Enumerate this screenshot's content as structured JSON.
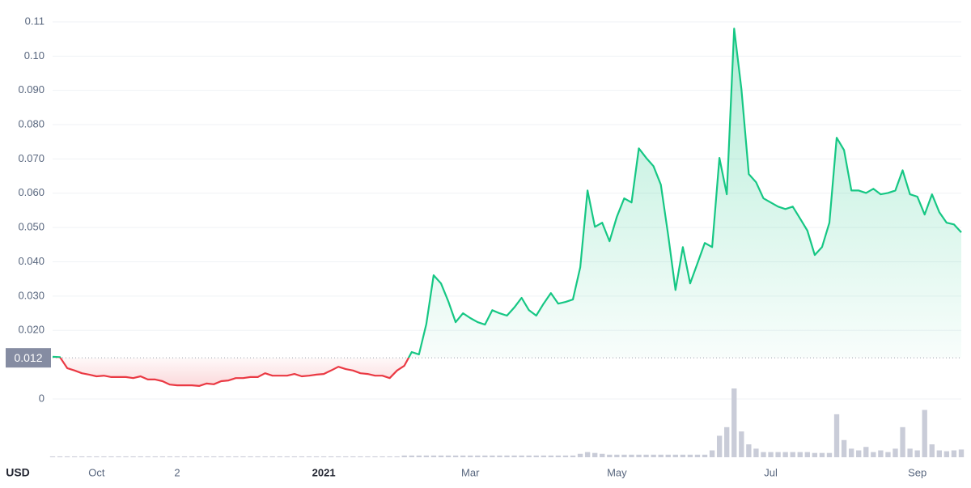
{
  "chart_data": {
    "type": "line",
    "currency": "USD",
    "reference_price": 0.012,
    "categories": [
      null,
      null,
      null,
      null,
      null,
      null,
      "Oct",
      null,
      null,
      null,
      null,
      null,
      null,
      null,
      null,
      null,
      null,
      "2",
      null,
      null,
      null,
      null,
      null,
      null,
      null,
      null,
      null,
      null,
      null,
      null,
      null,
      null,
      null,
      null,
      null,
      null,
      null,
      "2021",
      null,
      null,
      null,
      null,
      null,
      null,
      null,
      null,
      null,
      null,
      null,
      null,
      null,
      null,
      null,
      null,
      null,
      null,
      null,
      "Mar",
      null,
      null,
      null,
      null,
      null,
      null,
      null,
      null,
      null,
      null,
      null,
      null,
      null,
      null,
      null,
      null,
      null,
      null,
      null,
      "May",
      null,
      null,
      null,
      null,
      null,
      null,
      null,
      null,
      null,
      null,
      null,
      null,
      null,
      null,
      null,
      null,
      null,
      null,
      null,
      null,
      "Jul",
      null,
      null,
      null,
      null,
      null,
      null,
      null,
      null,
      null,
      null,
      null,
      null,
      null,
      null,
      null,
      null,
      null,
      null,
      null,
      "Sep",
      null,
      null,
      null,
      null,
      null,
      null
    ],
    "values": [
      0.0123,
      0.0122,
      0.009,
      0.0083,
      0.0075,
      0.0071,
      0.0066,
      0.0068,
      0.0064,
      0.0064,
      0.0064,
      0.0061,
      0.0066,
      0.0057,
      0.0057,
      0.0052,
      0.0042,
      0.004,
      0.004,
      0.004,
      0.0038,
      0.0045,
      0.0043,
      0.0052,
      0.0054,
      0.0061,
      0.0061,
      0.0064,
      0.0064,
      0.0075,
      0.0068,
      0.0068,
      0.0068,
      0.0073,
      0.0066,
      0.0068,
      0.0071,
      0.0073,
      0.0083,
      0.0094,
      0.0087,
      0.0083,
      0.0075,
      0.0073,
      0.0068,
      0.0068,
      0.0061,
      0.0083,
      0.0097,
      0.0137,
      0.013,
      0.0219,
      0.0361,
      0.0337,
      0.0285,
      0.0224,
      0.025,
      0.0236,
      0.0224,
      0.0217,
      0.0259,
      0.025,
      0.0243,
      0.0267,
      0.0295,
      0.0259,
      0.0243,
      0.0278,
      0.0309,
      0.0278,
      0.0283,
      0.029,
      0.0384,
      0.0608,
      0.0502,
      0.0514,
      0.046,
      0.0531,
      0.0585,
      0.0573,
      0.0731,
      0.0703,
      0.0679,
      0.0625,
      0.0479,
      0.0318,
      0.0443,
      0.0337,
      0.0396,
      0.0455,
      0.0443,
      0.0703,
      0.0597,
      0.108,
      0.0903,
      0.0656,
      0.0632,
      0.0585,
      0.0573,
      0.0561,
      0.0554,
      0.0561,
      0.0526,
      0.0491,
      0.042,
      0.0443,
      0.0514,
      0.0762,
      0.0726,
      0.0608,
      0.0608,
      0.0601,
      0.0613,
      0.0597,
      0.0601,
      0.0608,
      0.0667,
      0.0597,
      0.059,
      0.0538,
      0.0597,
      0.0545,
      0.0514,
      0.0509,
      0.0486
    ],
    "volume": [
      1,
      1,
      1,
      1,
      1,
      1,
      1,
      1,
      1,
      1,
      1,
      1,
      1,
      1,
      1,
      1,
      1,
      1,
      1,
      1,
      1,
      1,
      1,
      1,
      1,
      1,
      1,
      1,
      1,
      1,
      1,
      1,
      1,
      1,
      1,
      1,
      1,
      1,
      1,
      1,
      1,
      1,
      1,
      1,
      1,
      1,
      1,
      1,
      2,
      2,
      2,
      2,
      2,
      2,
      2,
      2,
      2,
      2,
      2,
      2,
      2,
      2,
      2,
      2,
      2,
      2,
      2,
      2,
      2,
      2,
      2,
      2,
      4,
      6,
      5,
      4,
      3,
      3,
      3,
      3,
      3,
      3,
      3,
      3,
      3,
      3,
      3,
      3,
      3,
      3,
      8,
      25,
      35,
      80,
      30,
      15,
      10,
      6,
      6,
      6,
      6,
      6,
      6,
      6,
      5,
      5,
      5,
      50,
      20,
      10,
      8,
      12,
      6,
      8,
      6,
      10,
      35,
      10,
      8,
      55,
      15,
      8,
      7,
      8,
      9
    ],
    "up_color": "#16c784",
    "down_color": "#ea3943",
    "volume_color": "#c9ccd8",
    "ylim": [
      0,
      0.114
    ],
    "yticks": [
      0,
      {
        "value": 0.02,
        "label": "0.020"
      },
      {
        "value": 0.03,
        "label": "0.030"
      },
      {
        "value": 0.04,
        "label": "0.040"
      },
      {
        "value": 0.05,
        "label": "0.050"
      },
      {
        "value": 0.06,
        "label": "0.060"
      },
      {
        "value": 0.07,
        "label": "0.070"
      },
      {
        "value": 0.08,
        "label": "0.080"
      },
      {
        "value": 0.09,
        "label": "0.090"
      },
      {
        "value": 0.1,
        "label": "0.10"
      },
      0.11
    ],
    "grid": true
  }
}
